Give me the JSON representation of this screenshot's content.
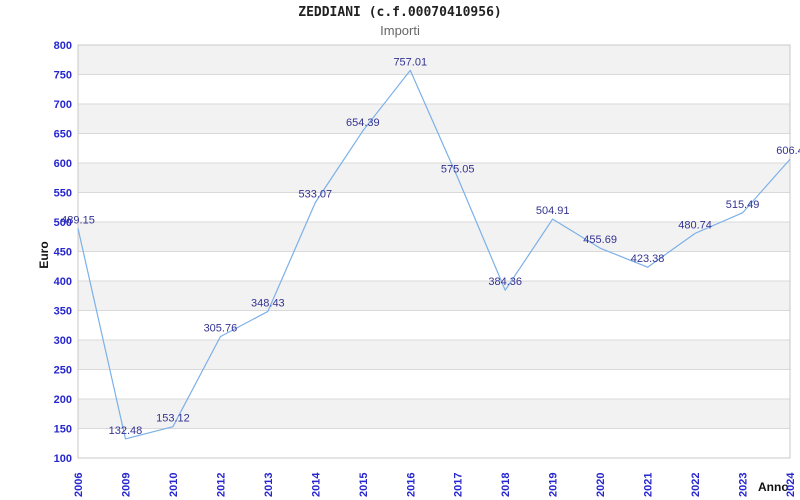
{
  "chart_data": {
    "type": "line",
    "title": "ZEDDIANI (c.f.00070410956)",
    "subtitle": "Importi",
    "xlabel": "Anno",
    "ylabel": "Euro",
    "categories": [
      "2006",
      "2009",
      "2010",
      "2012",
      "2013",
      "2014",
      "2015",
      "2016",
      "2017",
      "2018",
      "2019",
      "2020",
      "2021",
      "2022",
      "2023",
      "2024"
    ],
    "values": [
      489.15,
      132.48,
      153.12,
      305.76,
      348.43,
      533.07,
      654.39,
      757.01,
      575.05,
      384.36,
      504.91,
      455.69,
      423.38,
      480.74,
      515.49,
      606.4
    ],
    "point_labels": [
      "489.15",
      "132.48",
      "153.12",
      "305.76",
      "348.43",
      "533.07",
      "654.39",
      "757.01",
      "575.05",
      "384.36",
      "504.91",
      "455.69",
      "423.38",
      "480.74",
      "515.49",
      "606.4"
    ],
    "ylim": [
      100,
      800
    ],
    "ytick_step": 50,
    "grid": true,
    "legend": "none",
    "colors": {
      "line": "#7cb0e8",
      "tick_label": "#2626cf",
      "data_label": "#333392",
      "band": "#f2f2f2",
      "grid_line": "#d9d9d9",
      "plot_border": "#c8c8c8",
      "title_text": "#222222",
      "subtitle_text": "#666666"
    }
  }
}
